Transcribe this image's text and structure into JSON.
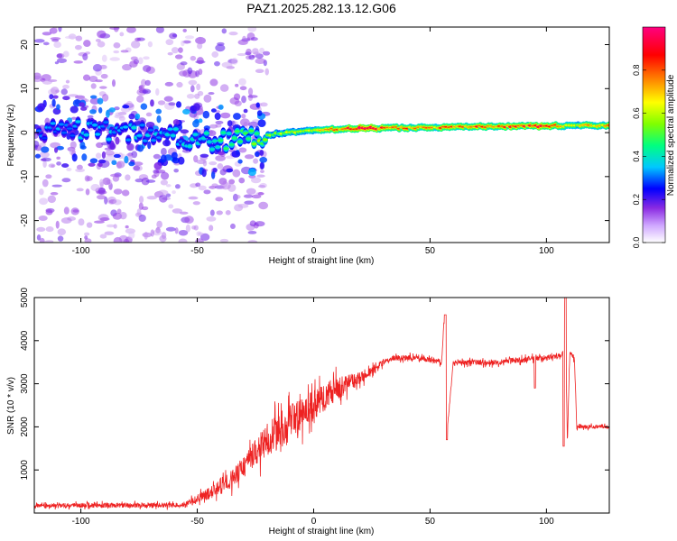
{
  "title": "PAZ1.2025.282.13.12.G06",
  "chart_data": [
    {
      "type": "heatmap",
      "title": "PAZ1.2025.282.13.12.G06",
      "xlabel": "Height of straight line (km)",
      "ylabel": "Frequency (Hz)",
      "xlim": [
        -120,
        127
      ],
      "ylim": [
        -25,
        24
      ],
      "xticks": [
        -100,
        -50,
        0,
        50,
        100
      ],
      "yticks": [
        -20,
        -10,
        0,
        10,
        20
      ],
      "colorbar": {
        "label": "Normalized spectral amplitude",
        "range": [
          0,
          1
        ],
        "ticks": [
          0.0,
          0.2,
          0.4,
          0.6,
          0.8
        ],
        "colormap": [
          "#ffffff",
          "#8a2be2",
          "#0000ff",
          "#00c8ff",
          "#00ff80",
          "#7fff00",
          "#ffff00",
          "#ff8c00",
          "#ff0000",
          "#ff0080"
        ]
      },
      "ridge": {
        "description_points_x": [
          -120,
          -90,
          -60,
          -45,
          -30,
          -20,
          -10,
          0,
          10,
          20,
          30,
          50,
          80,
          100,
          110,
          127
        ],
        "description_points_freq": [
          0.5,
          0.5,
          -0.5,
          -2.0,
          -1.5,
          -0.5,
          0.0,
          0.5,
          0.8,
          1.0,
          1.0,
          1.2,
          1.4,
          1.5,
          1.6,
          1.6
        ],
        "amplitude": [
          0.25,
          0.3,
          0.3,
          0.35,
          0.45,
          0.5,
          0.55,
          0.6,
          0.7,
          0.9,
          0.75,
          0.7,
          0.75,
          0.8,
          0.6,
          0.7
        ]
      }
    },
    {
      "type": "line",
      "xlabel": "Height of straight line (km)",
      "ylabel": "SNR (10 * v/v)",
      "xlim": [
        -120,
        127
      ],
      "ylim": [
        0,
        5000
      ],
      "xticks": [
        -100,
        -50,
        0,
        50,
        100
      ],
      "yticks": [
        1000,
        2000,
        3000,
        4000,
        5000
      ],
      "color": "#ee2222",
      "series": [
        {
          "name": "SNR",
          "x": [
            -120,
            -100,
            -80,
            -60,
            -55,
            -50,
            -45,
            -40,
            -35,
            -30,
            -25,
            -20,
            -15,
            -10,
            -5,
            0,
            5,
            10,
            15,
            20,
            25,
            30,
            35,
            40,
            45,
            50,
            55,
            56,
            57,
            60,
            65,
            70,
            75,
            80,
            85,
            90,
            95,
            100,
            105,
            107,
            108,
            109,
            110,
            112,
            113,
            115,
            120,
            127
          ],
          "y": [
            170,
            180,
            180,
            180,
            200,
            320,
            450,
            600,
            800,
            1100,
            1400,
            1700,
            1900,
            2100,
            2300,
            2500,
            2700,
            2900,
            3000,
            3150,
            3300,
            3500,
            3600,
            3600,
            3600,
            3550,
            3500,
            4500,
            1700,
            3500,
            3500,
            3500,
            3500,
            3500,
            3550,
            3550,
            3600,
            3600,
            3650,
            3700,
            4900,
            1600,
            3700,
            3600,
            2000,
            2000,
            2000,
            2000
          ],
          "noise": [
            60,
            80,
            80,
            80,
            100,
            150,
            200,
            250,
            300,
            350,
            450,
            550,
            600,
            600,
            550,
            500,
            450,
            400,
            300,
            200,
            150,
            100,
            90,
            90,
            90,
            90,
            90,
            0,
            0,
            90,
            90,
            90,
            90,
            90,
            90,
            90,
            90,
            90,
            90,
            90,
            0,
            0,
            90,
            90,
            60,
            60,
            60,
            60
          ]
        }
      ]
    }
  ]
}
